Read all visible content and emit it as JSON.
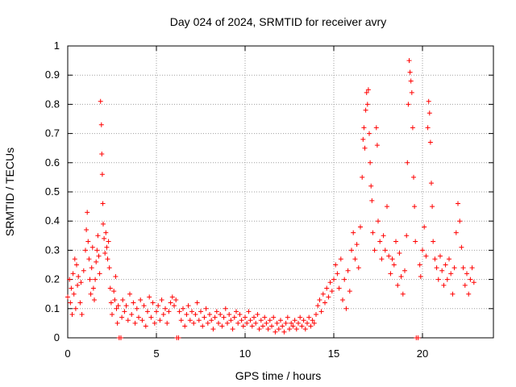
{
  "chart_data": {
    "type": "scatter",
    "title": "Day 024 of 2024, SRMTID for receiver avry",
    "xlabel": "GPS time / hours",
    "ylabel": "SRMTID / TECUs",
    "xlim": [
      0,
      24
    ],
    "ylim": [
      0,
      1
    ],
    "x_ticks": [
      0,
      5,
      10,
      15,
      20
    ],
    "x_tick_labels": [
      "0",
      "5",
      "10",
      "15",
      "20"
    ],
    "y_ticks": [
      0,
      0.1,
      0.2,
      0.3,
      0.4,
      0.5,
      0.6,
      0.7,
      0.8,
      0.9,
      1
    ],
    "y_tick_labels": [
      "0",
      "0.1",
      "0.2",
      "0.3",
      "0.4",
      "0.5",
      "0.6",
      "0.7",
      "0.8",
      "0.9",
      "1"
    ],
    "grid": true,
    "marker": "+",
    "color": "#ff0000",
    "series": [
      {
        "name": "SRMTID",
        "points": [
          [
            0.0,
            0.14
          ],
          [
            0.1,
            0.2
          ],
          [
            0.15,
            0.12
          ],
          [
            0.2,
            0.17
          ],
          [
            0.25,
            0.08
          ],
          [
            0.3,
            0.22
          ],
          [
            0.35,
            0.15
          ],
          [
            0.4,
            0.27
          ],
          [
            0.45,
            0.1
          ],
          [
            0.5,
            0.25
          ],
          [
            0.55,
            0.18
          ],
          [
            0.6,
            0.21
          ],
          [
            0.7,
            0.12
          ],
          [
            0.75,
            0.19
          ],
          [
            0.8,
            0.08
          ],
          [
            0.9,
            0.23
          ],
          [
            1.0,
            0.3
          ],
          [
            1.05,
            0.37
          ],
          [
            1.1,
            0.43
          ],
          [
            1.15,
            0.33
          ],
          [
            1.2,
            0.27
          ],
          [
            1.25,
            0.2
          ],
          [
            1.3,
            0.15
          ],
          [
            1.35,
            0.24
          ],
          [
            1.4,
            0.31
          ],
          [
            1.45,
            0.17
          ],
          [
            1.5,
            0.13
          ],
          [
            1.55,
            0.2
          ],
          [
            1.6,
            0.26
          ],
          [
            1.65,
            0.3
          ],
          [
            1.7,
            0.35
          ],
          [
            1.75,
            0.28
          ],
          [
            1.8,
            0.22
          ],
          [
            1.85,
            0.81
          ],
          [
            1.9,
            0.73
          ],
          [
            1.92,
            0.63
          ],
          [
            1.95,
            0.56
          ],
          [
            1.98,
            0.46
          ],
          [
            2.0,
            0.39
          ],
          [
            2.05,
            0.34
          ],
          [
            2.1,
            0.29
          ],
          [
            2.15,
            0.36
          ],
          [
            2.2,
            0.31
          ],
          [
            2.25,
            0.27
          ],
          [
            2.3,
            0.33
          ],
          [
            2.35,
            0.24
          ],
          [
            2.4,
            0.17
          ],
          [
            2.45,
            0.12
          ],
          [
            2.5,
            0.08
          ],
          [
            2.6,
            0.16
          ],
          [
            2.65,
            0.13
          ],
          [
            2.7,
            0.21
          ],
          [
            2.75,
            0.1
          ],
          [
            2.8,
            0.05
          ],
          [
            2.85,
            0.11
          ],
          [
            2.9,
            0.0
          ],
          [
            3.0,
            0.0
          ],
          [
            3.05,
            0.07
          ],
          [
            3.1,
            0.13
          ],
          [
            3.2,
            0.09
          ],
          [
            3.3,
            0.11
          ],
          [
            3.4,
            0.06
          ],
          [
            3.5,
            0.15
          ],
          [
            3.6,
            0.08
          ],
          [
            3.7,
            0.12
          ],
          [
            3.8,
            0.05
          ],
          [
            3.9,
            0.1
          ],
          [
            4.0,
            0.07
          ],
          [
            4.1,
            0.13
          ],
          [
            4.2,
            0.06
          ],
          [
            4.3,
            0.11
          ],
          [
            4.4,
            0.04
          ],
          [
            4.5,
            0.09
          ],
          [
            4.6,
            0.14
          ],
          [
            4.7,
            0.07
          ],
          [
            4.8,
            0.12
          ],
          [
            4.9,
            0.05
          ],
          [
            5.0,
            0.09
          ],
          [
            5.1,
            0.11
          ],
          [
            5.2,
            0.06
          ],
          [
            5.3,
            0.13
          ],
          [
            5.4,
            0.08
          ],
          [
            5.5,
            0.1
          ],
          [
            5.6,
            0.05
          ],
          [
            5.7,
            0.09
          ],
          [
            5.8,
            0.12
          ],
          [
            5.9,
            0.14
          ],
          [
            6.0,
            0.11
          ],
          [
            6.1,
            0.13
          ],
          [
            6.15,
            0.0
          ],
          [
            6.25,
            0.0
          ],
          [
            6.3,
            0.09
          ],
          [
            6.4,
            0.06
          ],
          [
            6.5,
            0.1
          ],
          [
            6.6,
            0.04
          ],
          [
            6.7,
            0.08
          ],
          [
            6.8,
            0.11
          ],
          [
            6.9,
            0.06
          ],
          [
            7.0,
            0.09
          ],
          [
            7.1,
            0.05
          ],
          [
            7.2,
            0.08
          ],
          [
            7.3,
            0.12
          ],
          [
            7.4,
            0.06
          ],
          [
            7.5,
            0.09
          ],
          [
            7.6,
            0.04
          ],
          [
            7.7,
            0.07
          ],
          [
            7.8,
            0.1
          ],
          [
            7.9,
            0.05
          ],
          [
            8.0,
            0.08
          ],
          [
            8.1,
            0.06
          ],
          [
            8.2,
            0.03
          ],
          [
            8.3,
            0.07
          ],
          [
            8.4,
            0.09
          ],
          [
            8.5,
            0.05
          ],
          [
            8.6,
            0.08
          ],
          [
            8.7,
            0.04
          ],
          [
            8.8,
            0.07
          ],
          [
            8.9,
            0.1
          ],
          [
            9.0,
            0.05
          ],
          [
            9.1,
            0.08
          ],
          [
            9.2,
            0.06
          ],
          [
            9.3,
            0.03
          ],
          [
            9.4,
            0.07
          ],
          [
            9.5,
            0.09
          ],
          [
            9.6,
            0.05
          ],
          [
            9.7,
            0.08
          ],
          [
            9.8,
            0.06
          ],
          [
            9.9,
            0.04
          ],
          [
            10.0,
            0.07
          ],
          [
            10.1,
            0.05
          ],
          [
            10.2,
            0.09
          ],
          [
            10.3,
            0.06
          ],
          [
            10.4,
            0.04
          ],
          [
            10.5,
            0.07
          ],
          [
            10.6,
            0.05
          ],
          [
            10.7,
            0.08
          ],
          [
            10.8,
            0.03
          ],
          [
            10.9,
            0.06
          ],
          [
            11.0,
            0.04
          ],
          [
            11.1,
            0.07
          ],
          [
            11.2,
            0.05
          ],
          [
            11.3,
            0.03
          ],
          [
            11.4,
            0.06
          ],
          [
            11.5,
            0.04
          ],
          [
            11.6,
            0.07
          ],
          [
            11.7,
            0.02
          ],
          [
            11.8,
            0.05
          ],
          [
            11.9,
            0.03
          ],
          [
            12.0,
            0.06
          ],
          [
            12.1,
            0.04
          ],
          [
            12.2,
            0.02
          ],
          [
            12.3,
            0.05
          ],
          [
            12.4,
            0.07
          ],
          [
            12.5,
            0.03
          ],
          [
            12.6,
            0.05
          ],
          [
            12.7,
            0.04
          ],
          [
            12.8,
            0.06
          ],
          [
            12.9,
            0.03
          ],
          [
            13.0,
            0.05
          ],
          [
            13.1,
            0.07
          ],
          [
            13.2,
            0.04
          ],
          [
            13.3,
            0.06
          ],
          [
            13.4,
            0.03
          ],
          [
            13.5,
            0.05
          ],
          [
            13.6,
            0.07
          ],
          [
            13.7,
            0.04
          ],
          [
            13.8,
            0.06
          ],
          [
            13.9,
            0.05
          ],
          [
            14.0,
            0.08
          ],
          [
            14.1,
            0.11
          ],
          [
            14.2,
            0.13
          ],
          [
            14.3,
            0.09
          ],
          [
            14.4,
            0.15
          ],
          [
            14.5,
            0.12
          ],
          [
            14.6,
            0.17
          ],
          [
            14.7,
            0.14
          ],
          [
            14.8,
            0.19
          ],
          [
            14.9,
            0.16
          ],
          [
            15.0,
            0.2
          ],
          [
            15.1,
            0.25
          ],
          [
            15.2,
            0.22
          ],
          [
            15.3,
            0.17
          ],
          [
            15.4,
            0.27
          ],
          [
            15.5,
            0.13
          ],
          [
            15.6,
            0.2
          ],
          [
            15.7,
            0.1
          ],
          [
            15.8,
            0.23
          ],
          [
            15.9,
            0.16
          ],
          [
            16.0,
            0.3
          ],
          [
            16.1,
            0.36
          ],
          [
            16.2,
            0.27
          ],
          [
            16.3,
            0.32
          ],
          [
            16.4,
            0.24
          ],
          [
            16.5,
            0.38
          ],
          [
            16.6,
            0.55
          ],
          [
            16.65,
            0.68
          ],
          [
            16.7,
            0.72
          ],
          [
            16.75,
            0.65
          ],
          [
            16.8,
            0.78
          ],
          [
            16.85,
            0.84
          ],
          [
            16.9,
            0.8
          ],
          [
            16.95,
            0.85
          ],
          [
            17.0,
            0.7
          ],
          [
            17.05,
            0.6
          ],
          [
            17.1,
            0.52
          ],
          [
            17.15,
            0.47
          ],
          [
            17.2,
            0.36
          ],
          [
            17.3,
            0.3
          ],
          [
            17.4,
            0.72
          ],
          [
            17.45,
            0.66
          ],
          [
            17.5,
            0.4
          ],
          [
            17.6,
            0.33
          ],
          [
            17.7,
            0.27
          ],
          [
            17.8,
            0.35
          ],
          [
            17.9,
            0.3
          ],
          [
            18.0,
            0.45
          ],
          [
            18.1,
            0.28
          ],
          [
            18.2,
            0.22
          ],
          [
            18.3,
            0.27
          ],
          [
            18.4,
            0.25
          ],
          [
            18.5,
            0.33
          ],
          [
            18.6,
            0.18
          ],
          [
            18.7,
            0.29
          ],
          [
            18.8,
            0.21
          ],
          [
            18.9,
            0.15
          ],
          [
            19.0,
            0.23
          ],
          [
            19.1,
            0.35
          ],
          [
            19.15,
            0.6
          ],
          [
            19.2,
            0.8
          ],
          [
            19.25,
            0.95
          ],
          [
            19.3,
            0.91
          ],
          [
            19.35,
            0.88
          ],
          [
            19.4,
            0.84
          ],
          [
            19.45,
            0.72
          ],
          [
            19.5,
            0.55
          ],
          [
            19.55,
            0.45
          ],
          [
            19.6,
            0.33
          ],
          [
            19.65,
            0.0
          ],
          [
            19.75,
            0.0
          ],
          [
            19.85,
            0.25
          ],
          [
            19.9,
            0.21
          ],
          [
            20.0,
            0.3
          ],
          [
            20.1,
            0.38
          ],
          [
            20.2,
            0.28
          ],
          [
            20.3,
            0.72
          ],
          [
            20.35,
            0.81
          ],
          [
            20.4,
            0.77
          ],
          [
            20.45,
            0.67
          ],
          [
            20.5,
            0.53
          ],
          [
            20.55,
            0.45
          ],
          [
            20.6,
            0.33
          ],
          [
            20.7,
            0.27
          ],
          [
            20.8,
            0.24
          ],
          [
            20.9,
            0.2
          ],
          [
            21.0,
            0.28
          ],
          [
            21.1,
            0.23
          ],
          [
            21.2,
            0.18
          ],
          [
            21.3,
            0.25
          ],
          [
            21.4,
            0.2
          ],
          [
            21.5,
            0.27
          ],
          [
            21.6,
            0.22
          ],
          [
            21.7,
            0.15
          ],
          [
            21.8,
            0.24
          ],
          [
            21.9,
            0.36
          ],
          [
            22.0,
            0.46
          ],
          [
            22.1,
            0.4
          ],
          [
            22.2,
            0.31
          ],
          [
            22.3,
            0.24
          ],
          [
            22.4,
            0.18
          ],
          [
            22.5,
            0.22
          ],
          [
            22.6,
            0.15
          ],
          [
            22.7,
            0.2
          ],
          [
            22.8,
            0.24
          ],
          [
            22.9,
            0.19
          ]
        ]
      }
    ]
  }
}
